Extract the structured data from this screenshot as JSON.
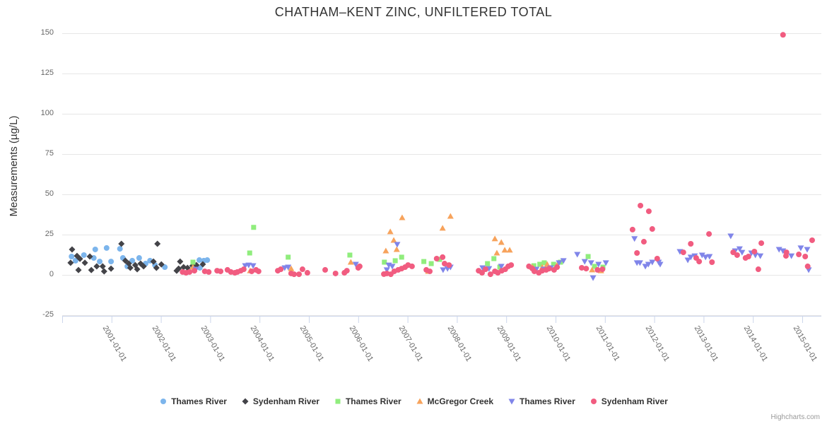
{
  "chart_data": {
    "type": "scatter",
    "title": "CHATHAM–KENT ZINC, UNFILTERED TOTAL",
    "ylabel": "Measurements (µg/L)",
    "credits": "Highcharts.com",
    "ylim": [
      -25,
      150
    ],
    "yticks": [
      -25,
      0,
      25,
      50,
      75,
      100,
      125,
      150
    ],
    "xlim": [
      2000,
      2015.4
    ],
    "xticks": [
      "2001-01-01",
      "2002-01-01",
      "2003-01-01",
      "2004-01-01",
      "2005-01-01",
      "2006-01-01",
      "2007-01-01",
      "2008-01-01",
      "2009-01-01",
      "2010-01-01",
      "2011-01-01",
      "2012-01-01",
      "2013-01-01",
      "2014-01-01",
      "2015-01-01"
    ],
    "grid": "horizontal",
    "legend_position": "bottom",
    "style": {
      "grid_color": "#e6e6e6",
      "axis_line_color": "#ccd6eb",
      "label_color": "#666666",
      "title_color": "#333333",
      "credits_color": "#999999"
    },
    "series": [
      {
        "name": "Thames River",
        "marker": "circle",
        "color": "#7cb5ec",
        "points": [
          [
            2000.19,
            11.4
          ],
          [
            2000.27,
            8.8
          ],
          [
            2000.44,
            12.3
          ],
          [
            2000.64,
            10.5
          ],
          [
            2000.67,
            15.8
          ],
          [
            2000.76,
            8.3
          ],
          [
            2000.9,
            16.7
          ],
          [
            2000.99,
            8.3
          ],
          [
            2001.17,
            16.2
          ],
          [
            2001.23,
            10.5
          ],
          [
            2001.32,
            5.3
          ],
          [
            2001.42,
            8.8
          ],
          [
            2001.56,
            10.5
          ],
          [
            2001.69,
            7.0
          ],
          [
            2001.78,
            8.8
          ],
          [
            2001.88,
            6.1
          ],
          [
            2002.08,
            4.8
          ],
          [
            2002.78,
            9.2
          ],
          [
            2002.79,
            4.4
          ],
          [
            2002.87,
            8.8
          ],
          [
            2002.94,
            9.2
          ]
        ]
      },
      {
        "name": "Sydenham River",
        "marker": "diamond",
        "color": "#434348",
        "points": [
          [
            2000.17,
            7.5
          ],
          [
            2000.2,
            15.8
          ],
          [
            2000.3,
            11.8
          ],
          [
            2000.33,
            3.0
          ],
          [
            2000.36,
            10.0
          ],
          [
            2000.46,
            7.5
          ],
          [
            2000.56,
            11.4
          ],
          [
            2000.59,
            3.0
          ],
          [
            2000.7,
            5.3
          ],
          [
            2000.82,
            5.3
          ],
          [
            2000.85,
            2.2
          ],
          [
            2000.99,
            3.9
          ],
          [
            2001.2,
            19.3
          ],
          [
            2001.28,
            8.8
          ],
          [
            2001.35,
            7.0
          ],
          [
            2001.38,
            4.4
          ],
          [
            2001.48,
            6.1
          ],
          [
            2001.52,
            3.5
          ],
          [
            2001.59,
            7.0
          ],
          [
            2001.65,
            5.3
          ],
          [
            2001.85,
            8.3
          ],
          [
            2001.91,
            4.4
          ],
          [
            2001.93,
            19.3
          ],
          [
            2002.01,
            6.5
          ],
          [
            2002.32,
            2.6
          ],
          [
            2002.36,
            3.9
          ],
          [
            2002.39,
            8.3
          ],
          [
            2002.46,
            4.8
          ],
          [
            2002.54,
            4.4
          ],
          [
            2002.64,
            5.7
          ],
          [
            2002.72,
            6.1
          ],
          [
            2002.85,
            6.6
          ]
        ]
      },
      {
        "name": "Thames River",
        "marker": "square",
        "color": "#90ed7d",
        "points": [
          [
            2002.65,
            7.9
          ],
          [
            2003.8,
            13.6
          ],
          [
            2003.88,
            29.5
          ],
          [
            2004.58,
            11.0
          ],
          [
            2005.83,
            12.3
          ],
          [
            2006.53,
            7.9
          ],
          [
            2006.75,
            8.8
          ],
          [
            2006.88,
            11.0
          ],
          [
            2007.33,
            8.3
          ],
          [
            2007.48,
            7.0
          ],
          [
            2007.65,
            9.6
          ],
          [
            2008.62,
            7.0
          ],
          [
            2008.75,
            10.1
          ],
          [
            2008.87,
            4.8
          ],
          [
            2009.56,
            5.7
          ],
          [
            2009.68,
            6.6
          ],
          [
            2009.77,
            7.5
          ],
          [
            2009.96,
            6.6
          ],
          [
            2010.1,
            7.9
          ],
          [
            2010.66,
            11.4
          ],
          [
            2010.79,
            5.3
          ],
          [
            2010.96,
            4.8
          ]
        ]
      },
      {
        "name": "McGregor Creek",
        "marker": "triangle",
        "color": "#f7a35c",
        "points": [
          [
            2002.65,
            4.8
          ],
          [
            2003.81,
            2.6
          ],
          [
            2004.64,
            3.9
          ],
          [
            2005.85,
            7.9
          ],
          [
            2006.56,
            14.9
          ],
          [
            2006.65,
            26.8
          ],
          [
            2006.72,
            21.5
          ],
          [
            2006.78,
            15.8
          ],
          [
            2006.89,
            35.5
          ],
          [
            2007.42,
            2.2
          ],
          [
            2007.71,
            29.0
          ],
          [
            2007.87,
            36.4
          ],
          [
            2008.77,
            22.4
          ],
          [
            2008.81,
            13.6
          ],
          [
            2008.9,
            20.2
          ],
          [
            2008.97,
            15.4
          ],
          [
            2009.07,
            15.4
          ],
          [
            2009.53,
            4.8
          ],
          [
            2009.73,
            4.8
          ],
          [
            2009.83,
            6.6
          ],
          [
            2010.03,
            6.1
          ],
          [
            2010.74,
            3.1
          ],
          [
            2010.92,
            2.6
          ]
        ]
      },
      {
        "name": "Thames River",
        "marker": "triangle-down",
        "color": "#8085e9",
        "points": [
          [
            2002.71,
            3.5
          ],
          [
            2003.71,
            5.7
          ],
          [
            2003.78,
            6.1
          ],
          [
            2003.87,
            5.7
          ],
          [
            2004.51,
            4.4
          ],
          [
            2004.58,
            4.8
          ],
          [
            2005.95,
            6.6
          ],
          [
            2006.58,
            3.1
          ],
          [
            2006.62,
            6.1
          ],
          [
            2006.69,
            5.3
          ],
          [
            2006.79,
            18.9
          ],
          [
            2007.72,
            3.1
          ],
          [
            2007.81,
            3.9
          ],
          [
            2007.87,
            4.8
          ],
          [
            2008.52,
            4.4
          ],
          [
            2008.65,
            3.9
          ],
          [
            2008.9,
            5.3
          ],
          [
            2009.61,
            3.5
          ],
          [
            2009.76,
            3.5
          ],
          [
            2009.9,
            4.4
          ],
          [
            2010.07,
            7.5
          ],
          [
            2010.16,
            8.8
          ],
          [
            2010.44,
            12.7
          ],
          [
            2010.59,
            8.3
          ],
          [
            2010.72,
            7.5
          ],
          [
            2010.76,
            -1.8
          ],
          [
            2010.87,
            6.6
          ],
          [
            2011.02,
            7.5
          ],
          [
            2011.6,
            22.5
          ],
          [
            2011.65,
            7.5
          ],
          [
            2011.71,
            7.5
          ],
          [
            2011.82,
            5.3
          ],
          [
            2011.88,
            6.6
          ],
          [
            2011.96,
            7.9
          ],
          [
            2012.09,
            7.9
          ],
          [
            2012.12,
            6.6
          ],
          [
            2012.52,
            14.5
          ],
          [
            2012.68,
            9.2
          ],
          [
            2012.74,
            11.0
          ],
          [
            2012.82,
            11.8
          ],
          [
            2012.97,
            12.3
          ],
          [
            2013.04,
            11.0
          ],
          [
            2013.12,
            11.4
          ],
          [
            2013.55,
            24.1
          ],
          [
            2013.64,
            14.9
          ],
          [
            2013.73,
            16.2
          ],
          [
            2013.78,
            14.0
          ],
          [
            2013.97,
            13.6
          ],
          [
            2014.05,
            12.3
          ],
          [
            2014.15,
            11.8
          ],
          [
            2014.53,
            15.8
          ],
          [
            2014.61,
            14.9
          ],
          [
            2014.78,
            11.8
          ],
          [
            2014.97,
            16.7
          ],
          [
            2015.1,
            15.8
          ],
          [
            2015.13,
            3.1
          ]
        ]
      },
      {
        "name": "Sydenham River",
        "marker": "circle",
        "color": "#f15c80",
        "points": [
          [
            2002.44,
            1.8
          ],
          [
            2002.51,
            1.3
          ],
          [
            2002.58,
            1.8
          ],
          [
            2002.68,
            2.6
          ],
          [
            2002.89,
            2.2
          ],
          [
            2002.97,
            1.8
          ],
          [
            2003.14,
            2.6
          ],
          [
            2003.21,
            2.2
          ],
          [
            2003.35,
            3.1
          ],
          [
            2003.42,
            1.8
          ],
          [
            2003.5,
            1.3
          ],
          [
            2003.55,
            1.8
          ],
          [
            2003.62,
            2.6
          ],
          [
            2003.68,
            3.5
          ],
          [
            2003.84,
            2.2
          ],
          [
            2003.93,
            3.1
          ],
          [
            2003.98,
            2.2
          ],
          [
            2004.37,
            2.6
          ],
          [
            2004.43,
            3.5
          ],
          [
            2004.64,
            0.9
          ],
          [
            2004.7,
            0.4
          ],
          [
            2004.8,
            0.4
          ],
          [
            2004.87,
            3.5
          ],
          [
            2004.97,
            1.3
          ],
          [
            2005.33,
            3.1
          ],
          [
            2005.54,
            0.9
          ],
          [
            2005.72,
            1.3
          ],
          [
            2005.77,
            2.6
          ],
          [
            2006.0,
            4.4
          ],
          [
            2006.03,
            5.3
          ],
          [
            2006.52,
            0.5
          ],
          [
            2006.58,
            0.9
          ],
          [
            2006.66,
            0.4
          ],
          [
            2006.73,
            2.2
          ],
          [
            2006.81,
            3.1
          ],
          [
            2006.88,
            3.9
          ],
          [
            2006.95,
            4.8
          ],
          [
            2007.01,
            6.1
          ],
          [
            2007.09,
            5.3
          ],
          [
            2007.38,
            3.1
          ],
          [
            2007.45,
            2.2
          ],
          [
            2007.59,
            10.1
          ],
          [
            2007.71,
            11.0
          ],
          [
            2007.75,
            7.0
          ],
          [
            2007.84,
            6.1
          ],
          [
            2008.44,
            2.6
          ],
          [
            2008.51,
            1.3
          ],
          [
            2008.58,
            3.5
          ],
          [
            2008.68,
            0.4
          ],
          [
            2008.77,
            2.2
          ],
          [
            2008.83,
            1.3
          ],
          [
            2008.91,
            2.6
          ],
          [
            2008.98,
            3.5
          ],
          [
            2009.04,
            5.3
          ],
          [
            2009.1,
            6.1
          ],
          [
            2009.46,
            5.3
          ],
          [
            2009.53,
            3.9
          ],
          [
            2009.57,
            2.2
          ],
          [
            2009.66,
            1.3
          ],
          [
            2009.73,
            2.6
          ],
          [
            2009.81,
            3.1
          ],
          [
            2009.87,
            3.9
          ],
          [
            2009.97,
            3.1
          ],
          [
            2010.03,
            4.8
          ],
          [
            2010.53,
            4.4
          ],
          [
            2010.62,
            3.9
          ],
          [
            2010.85,
            3.1
          ],
          [
            2010.95,
            3.5
          ],
          [
            2011.56,
            28.1
          ],
          [
            2011.65,
            13.6
          ],
          [
            2011.72,
            43.0
          ],
          [
            2011.79,
            20.6
          ],
          [
            2011.89,
            39.5
          ],
          [
            2011.96,
            28.5
          ],
          [
            2012.06,
            10.1
          ],
          [
            2012.59,
            14.0
          ],
          [
            2012.74,
            19.3
          ],
          [
            2012.85,
            10.5
          ],
          [
            2012.91,
            8.3
          ],
          [
            2013.11,
            25.4
          ],
          [
            2013.17,
            7.9
          ],
          [
            2013.6,
            14.0
          ],
          [
            2013.68,
            12.3
          ],
          [
            2013.85,
            10.5
          ],
          [
            2013.91,
            11.4
          ],
          [
            2014.03,
            14.5
          ],
          [
            2014.11,
            3.5
          ],
          [
            2014.17,
            19.7
          ],
          [
            2014.61,
            149.0
          ],
          [
            2014.67,
            11.8
          ],
          [
            2014.68,
            14.0
          ],
          [
            2014.93,
            12.7
          ],
          [
            2015.06,
            11.4
          ],
          [
            2015.11,
            5.3
          ],
          [
            2015.2,
            21.5
          ]
        ]
      }
    ]
  }
}
